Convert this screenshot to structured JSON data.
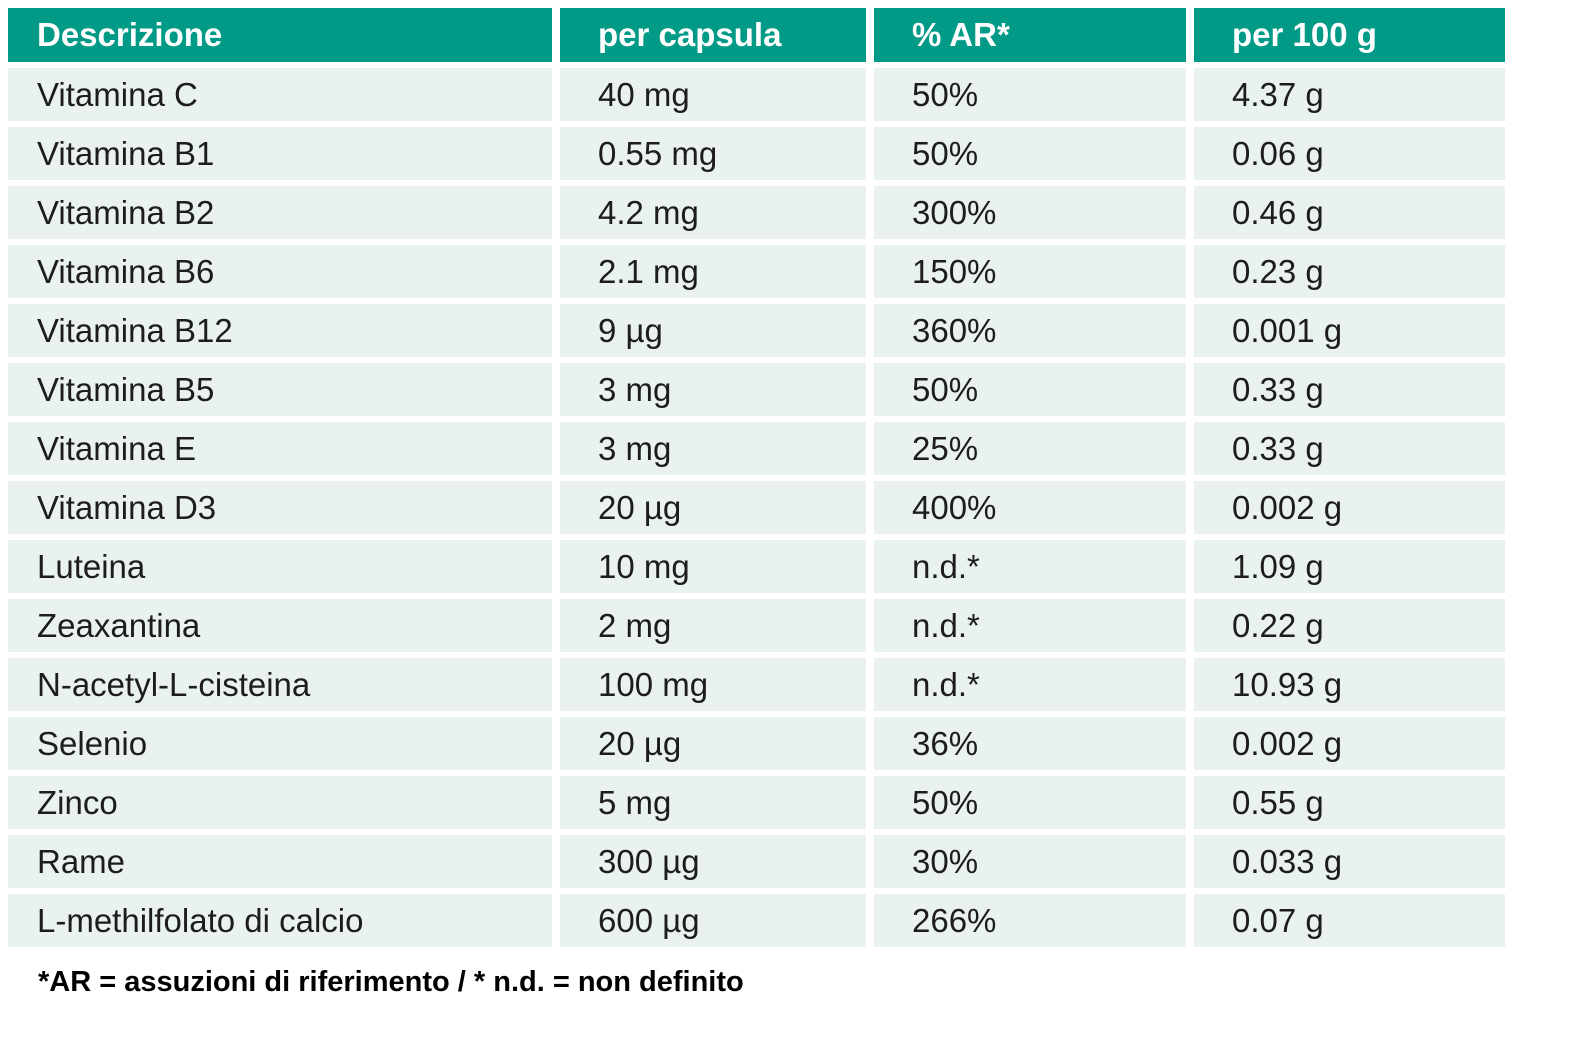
{
  "table": {
    "columns": [
      "Descrizione",
      "per capsula",
      "% AR*",
      "per 100 g"
    ],
    "rows": [
      [
        "Vitamina C",
        "40 mg",
        "50%",
        "4.37 g"
      ],
      [
        "Vitamina B1",
        "0.55 mg",
        "50%",
        "0.06 g"
      ],
      [
        "Vitamina B2",
        "4.2 mg",
        "300%",
        "0.46 g"
      ],
      [
        "Vitamina B6",
        "2.1 mg",
        "150%",
        "0.23 g"
      ],
      [
        "Vitamina B12",
        "9 µg",
        "360%",
        "0.001 g"
      ],
      [
        "Vitamina B5",
        "3 mg",
        "50%",
        "0.33 g"
      ],
      [
        "Vitamina E",
        "3 mg",
        "25%",
        "0.33 g"
      ],
      [
        "Vitamina D3",
        "20 µg",
        "400%",
        "0.002 g"
      ],
      [
        "Luteina",
        "10 mg",
        "n.d.*",
        "1.09 g"
      ],
      [
        "Zeaxantina",
        "2 mg",
        "n.d.*",
        "0.22 g"
      ],
      [
        "N-acetyl-L-cisteina",
        "100 mg",
        "n.d.*",
        "10.93 g"
      ],
      [
        "Selenio",
        "20 µg",
        "36%",
        "0.002 g"
      ],
      [
        "Zinco",
        "5 mg",
        "50%",
        "0.55 g"
      ],
      [
        "Rame",
        "300 µg",
        "30%",
        "0.033 g"
      ],
      [
        "L-methilfolato di calcio",
        "600 µg",
        "266%",
        "0.07 g"
      ]
    ]
  },
  "footnote": "*AR = assuzioni di riferimento / * n.d. = non definito",
  "colors": {
    "header_bg": "#019a86",
    "header_text": "#ffffff",
    "row_bg": "#e9f2f0",
    "body_text": "#1d1d1b",
    "page_bg": "#ffffff"
  }
}
